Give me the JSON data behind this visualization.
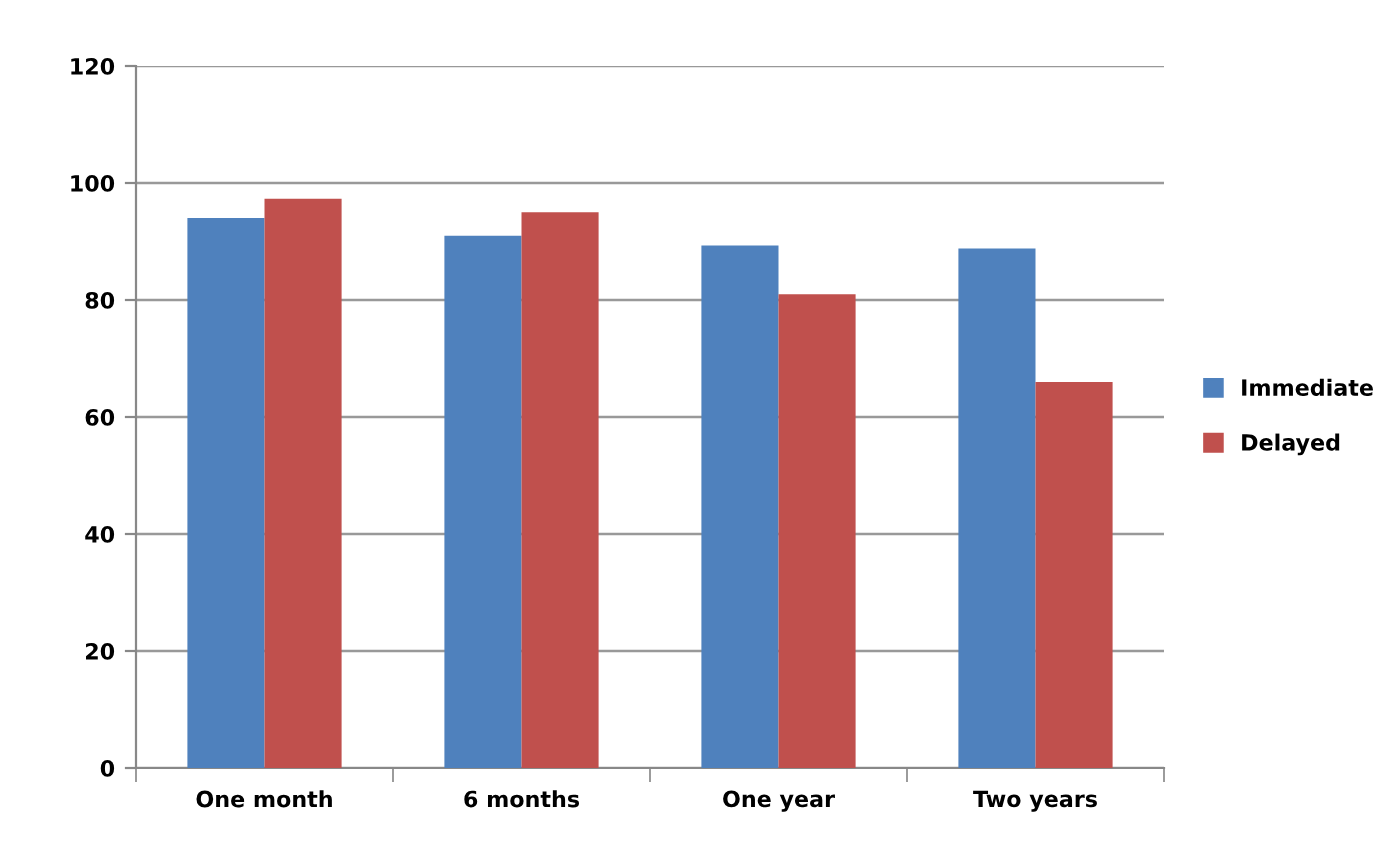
{
  "chart_data": {
    "type": "bar",
    "categories": [
      "One month",
      "6 months",
      "One year",
      "Two years"
    ],
    "series": [
      {
        "name": "Immediate",
        "color": "#4f81bd",
        "values": [
          94,
          91,
          89.3,
          88.8
        ]
      },
      {
        "name": "Delayed",
        "color": "#c0504d",
        "values": [
          97.3,
          95,
          81,
          66
        ]
      }
    ],
    "ylim": [
      0,
      120
    ],
    "yticks": [
      0,
      20,
      40,
      60,
      80,
      100,
      120
    ],
    "grid": "y",
    "legend": "right"
  }
}
